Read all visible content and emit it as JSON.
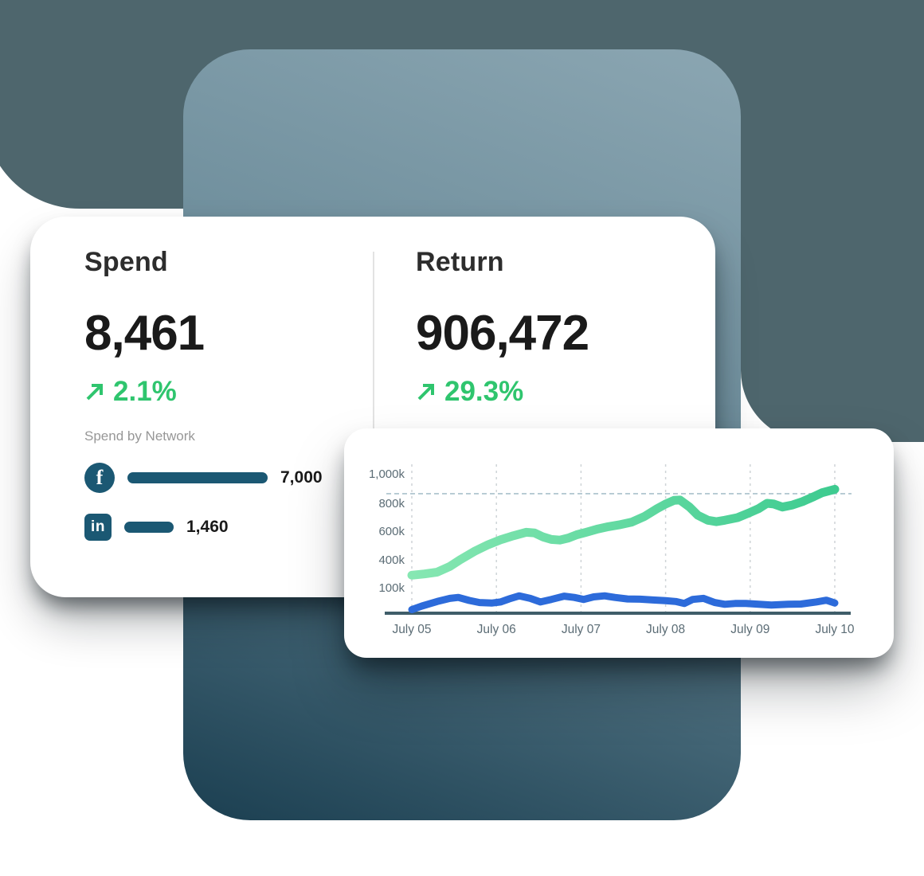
{
  "colors": {
    "backdrop": "#4e666d",
    "panel_gradient_top": "#8ba6b2",
    "panel_gradient_mid": "#6d8d9b",
    "panel_gradient_bottom": "#1b3f51",
    "accent_green": "#2fc56e",
    "network_bar": "#1b5873",
    "axis_line": "#3f5d69",
    "tick_text": "#5b6c75",
    "grid_line": "#cfd4d7",
    "reference_line": "#a9c0cc",
    "line_blue": "#2d6bda",
    "line_green_start": "#86e7b2",
    "line_green_end": "#3ecb90"
  },
  "stats_card": {
    "spend": {
      "title": "Spend",
      "value": "8,461",
      "change": "2.1%"
    },
    "return": {
      "title": "Return",
      "value": "906,472",
      "change": "29.3%"
    },
    "network_section": {
      "label": "Spend by Network",
      "items": [
        {
          "network": "Facebook",
          "icon": "facebook-icon",
          "icon_glyph": "f",
          "value": "7,000"
        },
        {
          "network": "LinkedIn",
          "icon": "linkedin-icon",
          "icon_glyph": "in",
          "value": "1,460"
        }
      ]
    }
  },
  "chart_data": {
    "type": "line",
    "title": "",
    "xlabel": "",
    "ylabel": "",
    "x_ticks": [
      "July 05",
      "July 06",
      "July 07",
      "July 08",
      "July 09",
      "July 10"
    ],
    "y_ticks": [
      {
        "label": "1,000k",
        "value": 1000
      },
      {
        "label": "800k",
        "value": 800
      },
      {
        "label": "600k",
        "value": 600
      },
      {
        "label": "400k",
        "value": 400
      },
      {
        "label": "100k",
        "value": 100
      }
    ],
    "ylim": [
      0,
      1000
    ],
    "x_range": [
      0,
      5
    ],
    "grid": {
      "vertical": "dashed",
      "horizontal": "none",
      "reference_line_value": 865
    },
    "legend": "none",
    "series": [
      {
        "name": "Return",
        "color": "green-gradient",
        "points": [
          [
            0,
            235
          ],
          [
            0.15,
            248
          ],
          [
            0.3,
            268
          ],
          [
            0.45,
            330
          ],
          [
            0.57,
            400
          ],
          [
            0.75,
            462
          ],
          [
            0.9,
            505
          ],
          [
            1.05,
            540
          ],
          [
            1.2,
            568
          ],
          [
            1.35,
            592
          ],
          [
            1.45,
            588
          ],
          [
            1.55,
            560
          ],
          [
            1.65,
            542
          ],
          [
            1.75,
            538
          ],
          [
            1.85,
            552
          ],
          [
            1.95,
            575
          ],
          [
            2.06,
            592
          ],
          [
            2.2,
            616
          ],
          [
            2.32,
            632
          ],
          [
            2.45,
            645
          ],
          [
            2.6,
            665
          ],
          [
            2.75,
            706
          ],
          [
            2.9,
            762
          ],
          [
            3.0,
            795
          ],
          [
            3.1,
            820
          ],
          [
            3.17,
            822
          ],
          [
            3.28,
            775
          ],
          [
            3.38,
            714
          ],
          [
            3.5,
            678
          ],
          [
            3.6,
            668
          ],
          [
            3.7,
            678
          ],
          [
            3.85,
            697
          ],
          [
            4.0,
            735
          ],
          [
            4.1,
            762
          ],
          [
            4.2,
            800
          ],
          [
            4.28,
            795
          ],
          [
            4.38,
            773
          ],
          [
            4.5,
            788
          ],
          [
            4.62,
            812
          ],
          [
            4.75,
            845
          ],
          [
            4.85,
            872
          ],
          [
            5.0,
            895
          ]
        ]
      },
      {
        "name": "Spend",
        "color": "#2d6bda",
        "points": [
          [
            0,
            14
          ],
          [
            0.12,
            28
          ],
          [
            0.3,
            46
          ],
          [
            0.45,
            58
          ],
          [
            0.55,
            62
          ],
          [
            0.68,
            50
          ],
          [
            0.8,
            42
          ],
          [
            0.95,
            40
          ],
          [
            1.05,
            44
          ],
          [
            1.15,
            56
          ],
          [
            1.27,
            68
          ],
          [
            1.4,
            58
          ],
          [
            1.52,
            44
          ],
          [
            1.65,
            54
          ],
          [
            1.8,
            67
          ],
          [
            1.92,
            62
          ],
          [
            2.03,
            54
          ],
          [
            2.15,
            64
          ],
          [
            2.28,
            68
          ],
          [
            2.4,
            62
          ],
          [
            2.55,
            56
          ],
          [
            2.7,
            55
          ],
          [
            2.85,
            52
          ],
          [
            3.0,
            49
          ],
          [
            3.12,
            46
          ],
          [
            3.22,
            38
          ],
          [
            3.32,
            54
          ],
          [
            3.45,
            58
          ],
          [
            3.58,
            42
          ],
          [
            3.7,
            35
          ],
          [
            3.82,
            38
          ],
          [
            3.95,
            38
          ],
          [
            4.1,
            35
          ],
          [
            4.25,
            32
          ],
          [
            4.45,
            35
          ],
          [
            4.6,
            36
          ],
          [
            4.78,
            44
          ],
          [
            4.9,
            51
          ],
          [
            5.0,
            40
          ]
        ]
      }
    ]
  }
}
